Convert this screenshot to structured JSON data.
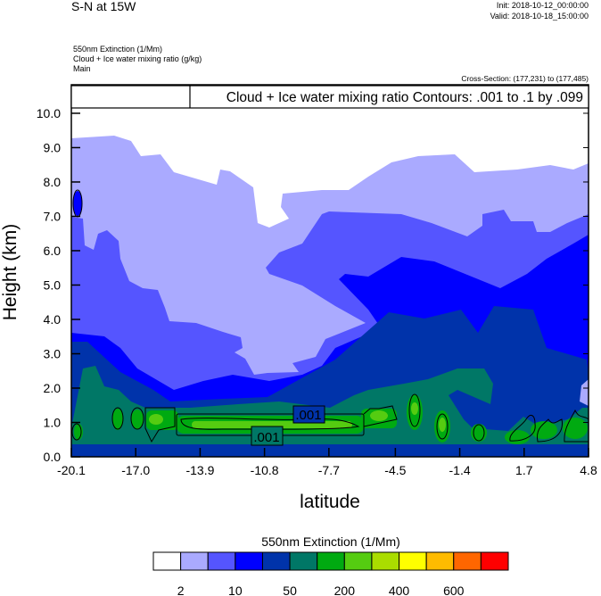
{
  "header": {
    "title": "S-N at 15W",
    "init": "Init: 2018-10-12_00:00:00",
    "valid": "Valid: 2018-10-18_15:00:00",
    "field_lines": [
      "550nm Extinction   (1/Mm)",
      "Cloud + Ice water mixing ratio   (g/kg)",
      "Main"
    ],
    "cross_section": "Cross-Section: (177,231) to (177,485)"
  },
  "chart_data": {
    "type": "heatmap",
    "subtype": "filled contour cross-section with line contours",
    "legend_text": "Cloud + Ice water mixing ratio Contours: .001 to .1 by .099",
    "xlabel": "latitude",
    "ylabel": "Height (km)",
    "xlim": [
      -20.1,
      4.8
    ],
    "ylim": [
      0,
      10.83
    ],
    "x_ticks": [
      -20.1,
      -17.0,
      -13.9,
      -10.8,
      -7.7,
      -4.5,
      -1.4,
      1.7,
      4.8
    ],
    "x_tick_labels": [
      "-20.1",
      "-17.0",
      "-13.9",
      "-10.8",
      "-7.7",
      "-4.5",
      "-1.4",
      "1.7",
      "4.8"
    ],
    "y_ticks": [
      0,
      1,
      2,
      3,
      4,
      5,
      6,
      7,
      8,
      9,
      10
    ],
    "y_tick_labels": [
      "0.0",
      "1.0",
      "2.0",
      "3.0",
      "4.0",
      "5.0",
      "6.0",
      "7.0",
      "8.0",
      "9.0",
      "10.0"
    ],
    "contour_labels": [
      ".001",
      ".001"
    ],
    "colorbar": {
      "title": "550nm Extinction  (1/Mm)",
      "colors": [
        "#ffffff",
        "#aaaaff",
        "#5555ff",
        "#0000ff",
        "#0033aa",
        "#007766",
        "#00aa11",
        "#55cc11",
        "#aadd00",
        "#ffff00",
        "#ffbb00",
        "#ff6600",
        "#ff0000"
      ],
      "labels": [
        "2",
        "10",
        "50",
        "200",
        "400",
        "600"
      ],
      "label_boundaries": [
        1,
        3,
        5,
        7,
        9,
        11
      ]
    }
  }
}
